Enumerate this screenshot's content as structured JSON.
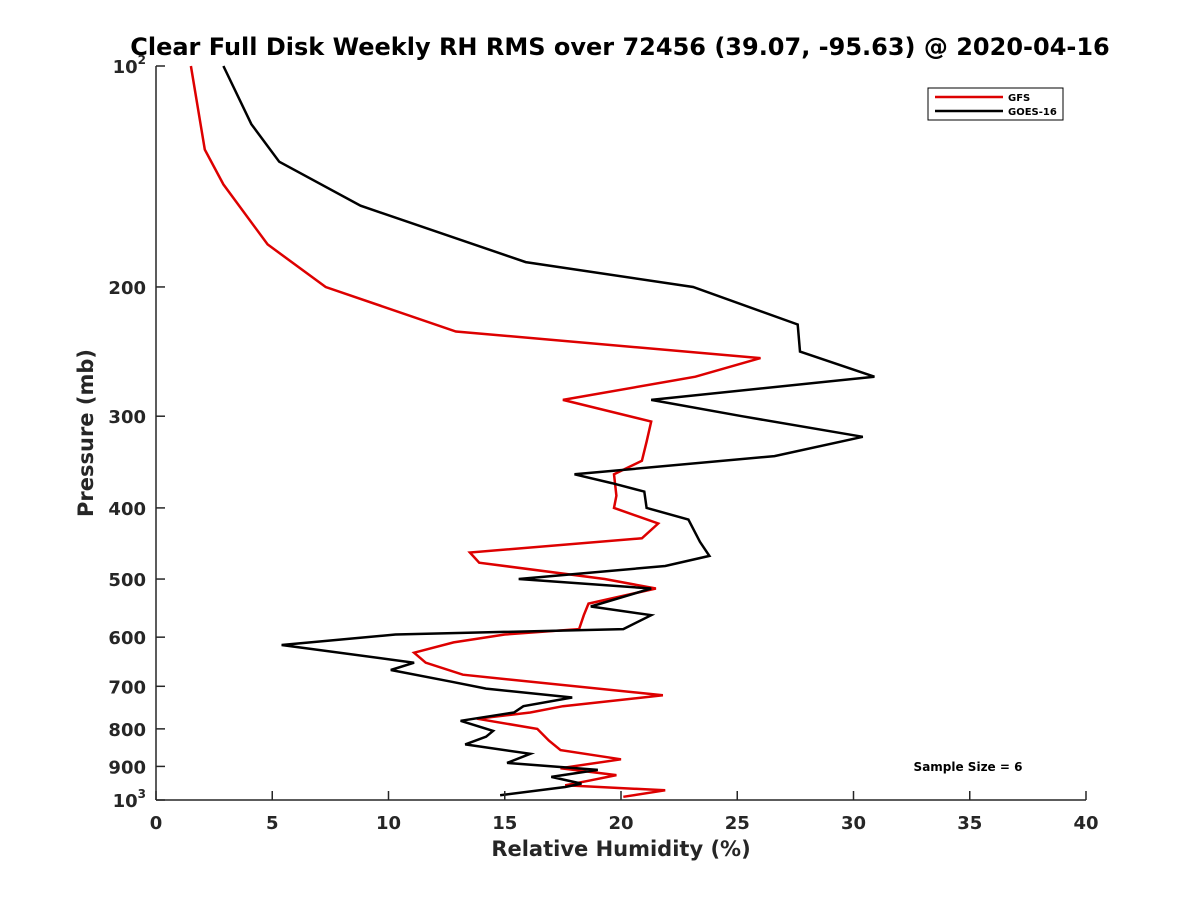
{
  "chart_data": {
    "type": "line",
    "title": "Clear Full Disk Weekly RH RMS over 72456 (39.07, -95.63) @ 2020-04-16",
    "xlabel": "Relative Humidity (%)",
    "ylabel": "Pressure (mb)",
    "xlim": [
      0,
      40
    ],
    "ylim": [
      100,
      1000
    ],
    "yscale": "log",
    "yreversed": true,
    "grid": false,
    "legend_position": "top-right",
    "xticks": [
      0,
      5,
      10,
      15,
      20,
      25,
      30,
      35,
      40
    ],
    "xtick_labels": [
      "0",
      "5",
      "10",
      "15",
      "20",
      "25",
      "30",
      "35",
      "40"
    ],
    "yticks": [
      {
        "value": 100,
        "base": "10",
        "exp": "2"
      },
      {
        "value": 200,
        "base": "200",
        "exp": ""
      },
      {
        "value": 300,
        "base": "300",
        "exp": ""
      },
      {
        "value": 400,
        "base": "400",
        "exp": ""
      },
      {
        "value": 500,
        "base": "500",
        "exp": ""
      },
      {
        "value": 600,
        "base": "600",
        "exp": ""
      },
      {
        "value": 700,
        "base": "700",
        "exp": ""
      },
      {
        "value": 800,
        "base": "800",
        "exp": ""
      },
      {
        "value": 900,
        "base": "900",
        "exp": ""
      },
      {
        "value": 1000,
        "base": "10",
        "exp": "3"
      }
    ],
    "annotation": "Sample Size = 6",
    "series": [
      {
        "name": "GFS",
        "color": "#dd0000",
        "points": [
          [
            1.5,
            100
          ],
          [
            2.1,
            130
          ],
          [
            2.9,
            145
          ],
          [
            4.8,
            175
          ],
          [
            7.3,
            200
          ],
          [
            12.9,
            230
          ],
          [
            26.0,
            250
          ],
          [
            23.2,
            265
          ],
          [
            17.5,
            285
          ],
          [
            21.3,
            305
          ],
          [
            21.1,
            325
          ],
          [
            20.9,
            345
          ],
          [
            19.7,
            360
          ],
          [
            19.8,
            385
          ],
          [
            19.7,
            400
          ],
          [
            21.6,
            420
          ],
          [
            20.9,
            440
          ],
          [
            13.5,
            460
          ],
          [
            13.9,
            475
          ],
          [
            19.3,
            500
          ],
          [
            21.5,
            515
          ],
          [
            18.6,
            540
          ],
          [
            18.4,
            560
          ],
          [
            18.2,
            585
          ],
          [
            15.0,
            595
          ],
          [
            12.8,
            610
          ],
          [
            11.1,
            630
          ],
          [
            11.6,
            650
          ],
          [
            13.2,
            675
          ],
          [
            21.8,
            720
          ],
          [
            17.5,
            745
          ],
          [
            16.1,
            760
          ],
          [
            13.8,
            775
          ],
          [
            16.4,
            800
          ],
          [
            16.9,
            830
          ],
          [
            17.4,
            855
          ],
          [
            20.0,
            880
          ],
          [
            17.4,
            905
          ],
          [
            19.8,
            925
          ],
          [
            18.7,
            940
          ],
          [
            17.6,
            955
          ],
          [
            21.9,
            970
          ],
          [
            20.1,
            990
          ]
        ]
      },
      {
        "name": "GOES-16",
        "color": "#000000",
        "points": [
          [
            2.9,
            100
          ],
          [
            4.1,
            120
          ],
          [
            5.3,
            135
          ],
          [
            8.8,
            155
          ],
          [
            15.9,
            185
          ],
          [
            23.1,
            200
          ],
          [
            27.6,
            225
          ],
          [
            27.7,
            245
          ],
          [
            30.9,
            265
          ],
          [
            21.3,
            285
          ],
          [
            25.2,
            300
          ],
          [
            30.4,
            320
          ],
          [
            26.6,
            340
          ],
          [
            18.0,
            360
          ],
          [
            19.6,
            370
          ],
          [
            21.0,
            380
          ],
          [
            21.1,
            400
          ],
          [
            22.9,
            415
          ],
          [
            23.4,
            445
          ],
          [
            23.8,
            465
          ],
          [
            21.9,
            480
          ],
          [
            15.6,
            500
          ],
          [
            21.3,
            515
          ],
          [
            18.7,
            545
          ],
          [
            21.3,
            560
          ],
          [
            20.1,
            585
          ],
          [
            10.3,
            595
          ],
          [
            5.4,
            615
          ],
          [
            11.1,
            650
          ],
          [
            10.1,
            665
          ],
          [
            12.7,
            690
          ],
          [
            14.2,
            705
          ],
          [
            17.9,
            725
          ],
          [
            15.8,
            745
          ],
          [
            15.4,
            760
          ],
          [
            13.1,
            780
          ],
          [
            14.5,
            805
          ],
          [
            14.2,
            820
          ],
          [
            13.3,
            840
          ],
          [
            16.1,
            865
          ],
          [
            15.1,
            890
          ],
          [
            19.0,
            910
          ],
          [
            17.0,
            930
          ],
          [
            18.3,
            950
          ],
          [
            17.6,
            960
          ],
          [
            14.8,
            985
          ]
        ]
      }
    ]
  }
}
